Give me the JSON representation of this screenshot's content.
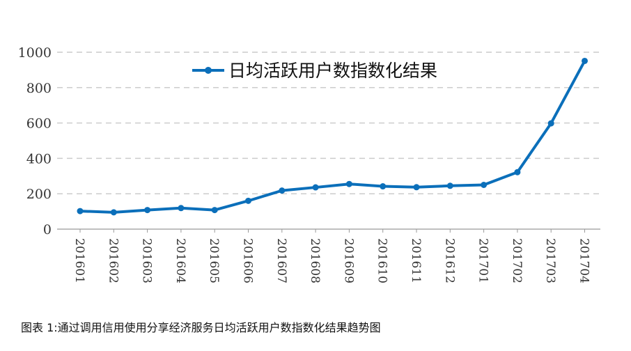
{
  "chart_data": {
    "type": "line",
    "title": "",
    "xlabel": "",
    "ylabel": "",
    "ylim": [
      0,
      1000
    ],
    "yticks": [
      0,
      200,
      400,
      600,
      800,
      1000
    ],
    "grid": "horizontal-dashed",
    "legend_position": "top-center",
    "categories": [
      "201601",
      "201602",
      "201603",
      "201604",
      "201605",
      "201606",
      "201607",
      "201608",
      "201609",
      "201610",
      "201611",
      "201612",
      "201701",
      "201702",
      "201703",
      "201704"
    ],
    "series": [
      {
        "name": "日均活跃用户数指数化结果",
        "color": "#0b6fba",
        "values": [
          102,
          95,
          108,
          119,
          108,
          160,
          218,
          236,
          255,
          242,
          237,
          245,
          250,
          322,
          598,
          951
        ]
      }
    ]
  },
  "caption": "图表 1:通过调用信用使用分享经济服务日均活跃用户数指数化结果趋势图"
}
